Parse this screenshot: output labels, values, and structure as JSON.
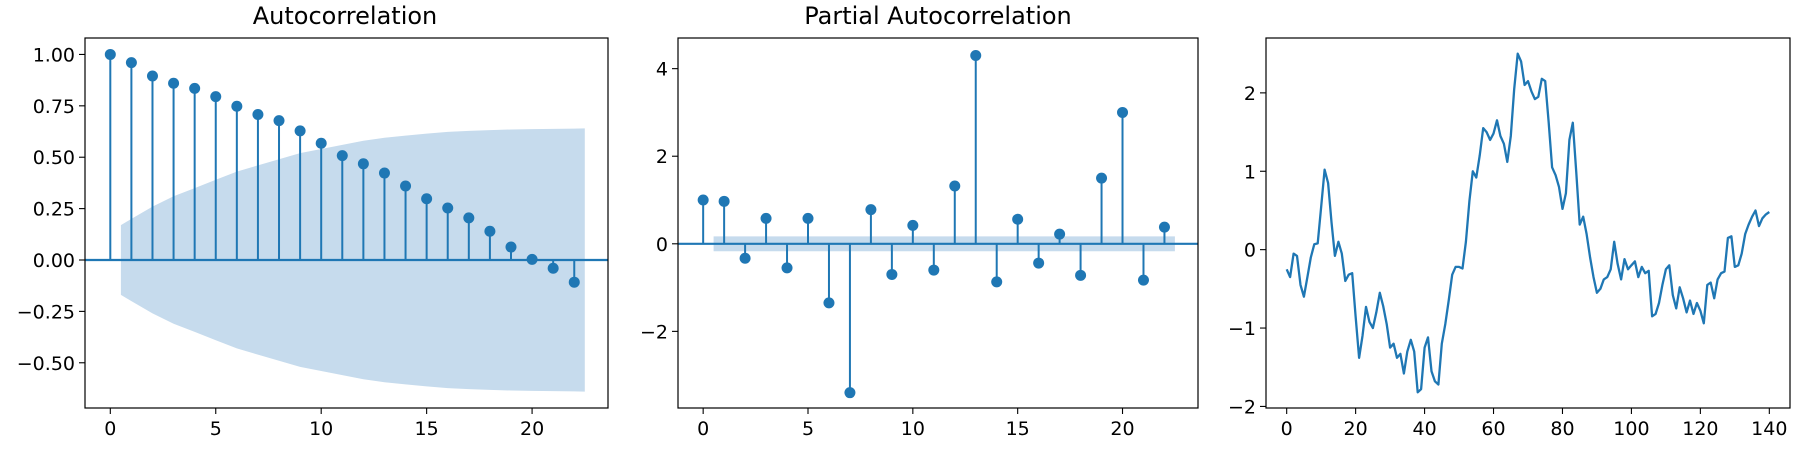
{
  "chart_data": [
    {
      "type": "stem",
      "title": "Autocorrelation",
      "lags": [
        0,
        1,
        2,
        3,
        4,
        5,
        6,
        7,
        8,
        9,
        10,
        11,
        12,
        13,
        14,
        15,
        16,
        17,
        18,
        19,
        20,
        21,
        22
      ],
      "values": [
        1.0,
        0.96,
        0.895,
        0.86,
        0.835,
        0.795,
        0.748,
        0.708,
        0.678,
        0.628,
        0.568,
        0.508,
        0.468,
        0.423,
        0.36,
        0.298,
        0.253,
        0.205,
        0.14,
        0.063,
        0.003,
        -0.04,
        -0.108
      ],
      "confidence_band": {
        "lags": [
          0.5,
          1,
          2,
          3,
          4,
          5,
          6,
          7,
          8,
          9,
          10,
          11,
          12,
          13,
          14,
          15,
          16,
          17,
          18,
          19,
          20,
          21,
          22,
          22.5
        ],
        "upper": [
          0.17,
          0.2,
          0.26,
          0.31,
          0.35,
          0.39,
          0.43,
          0.46,
          0.49,
          0.52,
          0.54,
          0.56,
          0.58,
          0.595,
          0.605,
          0.615,
          0.623,
          0.628,
          0.632,
          0.635,
          0.637,
          0.638,
          0.639,
          0.64
        ]
      },
      "xlim": [
        -1.2,
        23.6
      ],
      "ylim": [
        -0.72,
        1.08
      ],
      "xticks": [
        0,
        5,
        10,
        15,
        20
      ],
      "yticks": [
        -0.5,
        -0.25,
        0.0,
        0.25,
        0.5,
        0.75,
        1.0
      ],
      "ytick_labels": [
        "−0.50",
        "−0.25",
        "0.00",
        "0.25",
        "0.50",
        "0.75",
        "1.00"
      ],
      "color": "#1f77b4",
      "band_color": "#c6dbed"
    },
    {
      "type": "stem",
      "title": "Partial Autocorrelation",
      "lags": [
        0,
        1,
        2,
        3,
        4,
        5,
        6,
        7,
        8,
        9,
        10,
        11,
        12,
        13,
        14,
        15,
        16,
        17,
        18,
        19,
        20,
        21,
        22
      ],
      "values": [
        1.0,
        0.97,
        -0.33,
        0.58,
        -0.55,
        0.58,
        -1.35,
        -3.4,
        0.78,
        -0.7,
        0.42,
        -0.6,
        1.32,
        4.3,
        -0.87,
        0.56,
        -0.44,
        0.22,
        -0.72,
        1.5,
        3.0,
        -0.83,
        0.38
      ],
      "confidence_band": {
        "lags": [
          0.5,
          22.5
        ],
        "upper": [
          0.17,
          0.17
        ]
      },
      "xlim": [
        -1.2,
        23.6
      ],
      "ylim": [
        -3.75,
        4.7
      ],
      "xticks": [
        0,
        5,
        10,
        15,
        20
      ],
      "yticks": [
        -2,
        0,
        2,
        4
      ],
      "ytick_labels": [
        "−2",
        "0",
        "2",
        "4"
      ],
      "color": "#1f77b4",
      "band_color": "#c6dbed"
    },
    {
      "type": "line",
      "title": "",
      "x": [
        0,
        1,
        2,
        3,
        4,
        5,
        6,
        7,
        8,
        9,
        10,
        11,
        12,
        13,
        14,
        15,
        16,
        17,
        18,
        19,
        20,
        21,
        22,
        23,
        24,
        25,
        26,
        27,
        28,
        29,
        30,
        31,
        32,
        33,
        34,
        35,
        36,
        37,
        38,
        39,
        40,
        41,
        42,
        43,
        44,
        45,
        46,
        47,
        48,
        49,
        50,
        51,
        52,
        53,
        54,
        55,
        56,
        57,
        58,
        59,
        60,
        61,
        62,
        63,
        64,
        65,
        66,
        67,
        68,
        69,
        70,
        71,
        72,
        73,
        74,
        75,
        76,
        77,
        78,
        79,
        80,
        81,
        82,
        83,
        84,
        85,
        86,
        87,
        88,
        89,
        90,
        91,
        92,
        93,
        94,
        95,
        96,
        97,
        98,
        99,
        100,
        101,
        102,
        103,
        104,
        105,
        106,
        107,
        108,
        109,
        110,
        111,
        112,
        113,
        114,
        115,
        116,
        117,
        118,
        119,
        120,
        121,
        122,
        123,
        124,
        125,
        126,
        127,
        128,
        129,
        130,
        131,
        132,
        133,
        134,
        135,
        136,
        137,
        138,
        139,
        140
      ],
      "y": [
        -0.25,
        -0.35,
        -0.05,
        -0.08,
        -0.45,
        -0.6,
        -0.35,
        -0.1,
        0.07,
        0.08,
        0.55,
        1.02,
        0.85,
        0.35,
        -0.08,
        0.1,
        -0.05,
        -0.4,
        -0.32,
        -0.3,
        -0.85,
        -1.38,
        -1.1,
        -0.73,
        -0.92,
        -1.0,
        -0.8,
        -0.55,
        -0.72,
        -0.95,
        -1.25,
        -1.2,
        -1.38,
        -1.33,
        -1.58,
        -1.3,
        -1.15,
        -1.3,
        -1.82,
        -1.78,
        -1.25,
        -1.12,
        -1.55,
        -1.68,
        -1.72,
        -1.2,
        -0.95,
        -0.65,
        -0.32,
        -0.22,
        -0.22,
        -0.24,
        0.1,
        0.62,
        1.0,
        0.92,
        1.2,
        1.55,
        1.5,
        1.4,
        1.48,
        1.65,
        1.45,
        1.35,
        1.12,
        1.45,
        2.05,
        2.5,
        2.4,
        2.1,
        2.15,
        2.02,
        1.92,
        1.95,
        2.18,
        2.15,
        1.62,
        1.05,
        0.95,
        0.8,
        0.52,
        0.72,
        1.4,
        1.62,
        0.98,
        0.32,
        0.42,
        0.2,
        -0.1,
        -0.35,
        -0.55,
        -0.5,
        -0.38,
        -0.35,
        -0.25,
        0.1,
        -0.18,
        -0.38,
        -0.12,
        -0.25,
        -0.2,
        -0.15,
        -0.35,
        -0.22,
        -0.3,
        -0.27,
        -0.85,
        -0.82,
        -0.68,
        -0.45,
        -0.25,
        -0.2,
        -0.58,
        -0.75,
        -0.48,
        -0.62,
        -0.8,
        -0.65,
        -0.82,
        -0.68,
        -0.78,
        -0.94,
        -0.45,
        -0.42,
        -0.62,
        -0.38,
        -0.3,
        -0.28,
        0.15,
        0.17,
        -0.22,
        -0.2,
        -0.05,
        0.2,
        0.32,
        0.42,
        0.5,
        0.3,
        0.4,
        0.45,
        0.48
      ],
      "xlim": [
        -6,
        146
      ],
      "ylim": [
        -2.02,
        2.7
      ],
      "xticks": [
        0,
        20,
        40,
        60,
        80,
        100,
        120,
        140
      ],
      "yticks": [
        -2,
        -1,
        0,
        1,
        2
      ],
      "ytick_labels": [
        "−2",
        "−1",
        "0",
        "1",
        "2"
      ],
      "color": "#1f77b4"
    }
  ]
}
